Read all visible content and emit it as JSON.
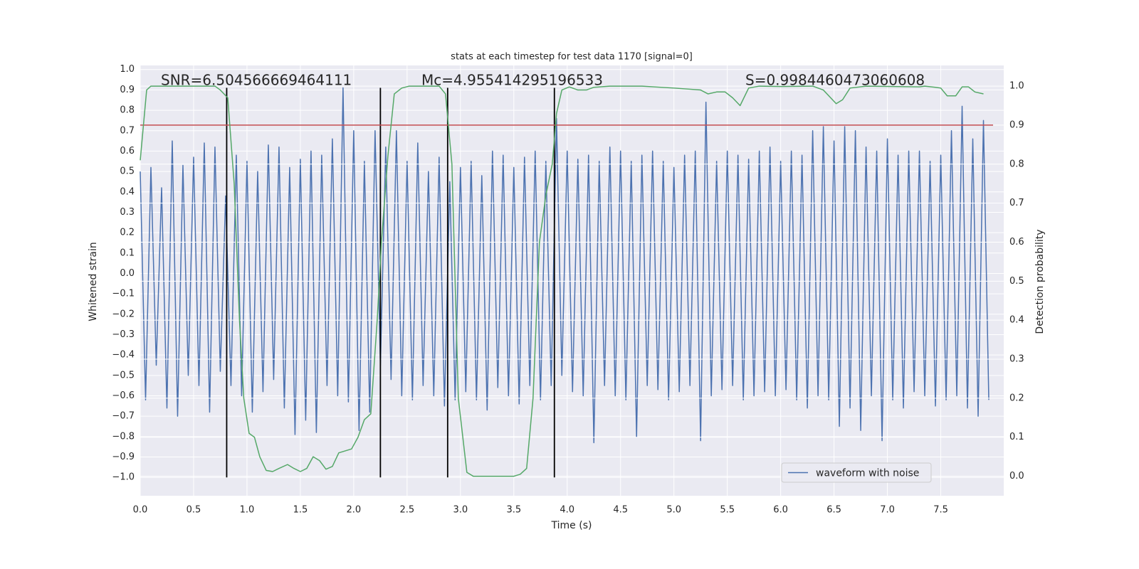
{
  "chart_data": {
    "type": "line",
    "title": "stats at each timestep for test data 1170 [signal=0]",
    "xlabel": "Time (s)",
    "ylabel": "Whitened strain",
    "y2label": "Detection probability",
    "annotations": [
      "SNR=6.504566669464111",
      "Mc=4.955414295196533",
      "S=0.9984460473060608"
    ],
    "xlim": [
      0,
      8.09
    ],
    "ylim": [
      -1.09,
      1.02
    ],
    "y2lim": [
      -0.05,
      1.053
    ],
    "xticks": [
      {
        "value": 0,
        "label": "0.0"
      },
      0.5,
      {
        "value": 1,
        "label": "1.0"
      },
      1.5,
      {
        "value": 2,
        "label": "2.0"
      },
      2.5,
      {
        "value": 3,
        "label": "3.0"
      },
      3.5,
      {
        "value": 4,
        "label": "4.0"
      },
      4.5,
      {
        "value": 5,
        "label": "5.0"
      },
      5.5,
      {
        "value": 6,
        "label": "6.0"
      },
      6.5,
      {
        "value": 7,
        "label": "7.0"
      },
      7.5
    ],
    "yticks": [
      {
        "value": -1,
        "label": "−1.0"
      },
      {
        "value": -0.9,
        "label": "−0.9"
      },
      {
        "value": -0.8,
        "label": "−0.8"
      },
      {
        "value": -0.7,
        "label": "−0.7"
      },
      {
        "value": -0.6,
        "label": "−0.6"
      },
      {
        "value": -0.5,
        "label": "−0.5"
      },
      {
        "value": -0.4,
        "label": "−0.4"
      },
      {
        "value": -0.3,
        "label": "−0.3"
      },
      {
        "value": -0.2,
        "label": "−0.2"
      },
      {
        "value": -0.1,
        "label": "−0.1"
      },
      {
        "value": 0,
        "label": "0.0"
      },
      0.1,
      0.2,
      0.3,
      0.4,
      0.5,
      0.6,
      0.7,
      0.8,
      0.9,
      {
        "value": 1,
        "label": "1.0"
      }
    ],
    "y2ticks": [
      {
        "value": 0,
        "label": "0.0"
      },
      0.1,
      0.2,
      0.3,
      0.4,
      0.5,
      0.6,
      0.7,
      0.8,
      0.9,
      {
        "value": 1,
        "label": "1.0"
      }
    ],
    "grid": true,
    "legend": "lower right",
    "series": [
      {
        "name": "waveform with noise",
        "color": "#4c72b0",
        "x": [
          0,
          0.05,
          0.1,
          0.15,
          0.2,
          0.25,
          0.3,
          0.35,
          0.4,
          0.45,
          0.5,
          0.55,
          0.6,
          0.65,
          0.7,
          0.75,
          0.8,
          0.85,
          0.9,
          0.95,
          1,
          1.05,
          1.1,
          1.15,
          1.2,
          1.25,
          1.3,
          1.35,
          1.4,
          1.45,
          1.5,
          1.55,
          1.6,
          1.65,
          1.7,
          1.75,
          1.8,
          1.85,
          1.9,
          1.95,
          2,
          2.05,
          2.1,
          2.15,
          2.2,
          2.25,
          2.3,
          2.35,
          2.4,
          2.45,
          2.5,
          2.55,
          2.6,
          2.65,
          2.7,
          2.75,
          2.8,
          2.85,
          2.9,
          2.95,
          3,
          3.05,
          3.1,
          3.15,
          3.2,
          3.25,
          3.3,
          3.35,
          3.4,
          3.45,
          3.5,
          3.55,
          3.6,
          3.65,
          3.7,
          3.75,
          3.8,
          3.85,
          3.9,
          3.95,
          4,
          4.05,
          4.1,
          4.15,
          4.2,
          4.25,
          4.3,
          4.35,
          4.4,
          4.45,
          4.5,
          4.55,
          4.6,
          4.65,
          4.7,
          4.75,
          4.8,
          4.85,
          4.9,
          4.95,
          5,
          5.05,
          5.1,
          5.15,
          5.2,
          5.25,
          5.3,
          5.35,
          5.4,
          5.45,
          5.5,
          5.55,
          5.6,
          5.65,
          5.7,
          5.75,
          5.8,
          5.85,
          5.9,
          5.95,
          6,
          6.05,
          6.1,
          6.15,
          6.2,
          6.25,
          6.3,
          6.35,
          6.4,
          6.45,
          6.5,
          6.55,
          6.6,
          6.65,
          6.7,
          6.75,
          6.8,
          6.85,
          6.9,
          6.95,
          7,
          7.05,
          7.1,
          7.15,
          7.2,
          7.25,
          7.3,
          7.35,
          7.4,
          7.45,
          7.5,
          7.55,
          7.6,
          7.65,
          7.7,
          7.75,
          7.8,
          7.85,
          7.9,
          7.95
        ],
        "values": [
          0.5,
          -0.62,
          0.52,
          -0.45,
          0.42,
          -0.66,
          0.65,
          -0.7,
          0.53,
          -0.5,
          0.57,
          -0.55,
          0.64,
          -0.68,
          0.62,
          -0.48,
          0.38,
          -0.55,
          0.58,
          -0.6,
          0.55,
          -0.68,
          0.5,
          -0.58,
          0.63,
          -0.52,
          0.62,
          -0.66,
          0.52,
          -0.79,
          0.56,
          -0.72,
          0.6,
          -0.78,
          0.58,
          -0.55,
          0.66,
          -0.6,
          0.91,
          -0.63,
          0.7,
          -0.77,
          0.55,
          -0.68,
          0.7,
          -0.45,
          0.62,
          -0.52,
          0.7,
          -0.6,
          0.55,
          -0.62,
          0.64,
          -0.55,
          0.5,
          -0.6,
          0.57,
          -0.65,
          0.45,
          -0.62,
          0.52,
          -0.58,
          0.55,
          -0.62,
          0.48,
          -0.67,
          0.6,
          -0.56,
          0.58,
          -0.6,
          0.52,
          -0.64,
          0.57,
          -0.55,
          0.6,
          -0.62,
          0.55,
          -0.55,
          0.76,
          -0.5,
          0.6,
          -0.58,
          0.56,
          -0.6,
          0.58,
          -0.83,
          0.55,
          -0.55,
          0.62,
          -0.6,
          0.6,
          -0.62,
          0.55,
          -0.8,
          0.58,
          -0.55,
          0.6,
          -0.57,
          0.55,
          -0.62,
          0.52,
          -0.58,
          0.58,
          -0.55,
          0.6,
          -0.82,
          0.84,
          -0.6,
          0.55,
          -0.57,
          0.6,
          -0.55,
          0.58,
          -0.62,
          0.56,
          -0.6,
          0.6,
          -0.58,
          0.62,
          -0.6,
          0.55,
          -0.57,
          0.6,
          -0.62,
          0.58,
          -0.66,
          0.7,
          -0.6,
          0.72,
          -0.62,
          0.65,
          -0.75,
          0.72,
          -0.66,
          0.7,
          -0.77,
          0.62,
          -0.6,
          0.6,
          -0.82,
          0.66,
          -0.62,
          0.58,
          -0.66,
          0.6,
          -0.58,
          0.6,
          -0.6,
          0.55,
          -0.65,
          0.58,
          -0.62,
          0.7,
          -0.6,
          0.82,
          -0.66,
          0.66,
          -0.7,
          0.75,
          -0.62
        ]
      },
      {
        "color": "#c44e52",
        "axis": "y2",
        "x": [
          0,
          7.99
        ],
        "values": [
          0.9,
          0.9
        ]
      },
      {
        "color": "#55a868",
        "axis": "y2",
        "x": [
          0,
          0.06,
          0.1,
          0.7,
          0.75,
          0.82,
          0.88,
          0.93,
          0.97,
          1.02,
          1.07,
          1.12,
          1.18,
          1.24,
          1.3,
          1.38,
          1.44,
          1.5,
          1.56,
          1.62,
          1.68,
          1.74,
          1.8,
          1.86,
          1.92,
          1.98,
          2.04,
          2.1,
          2.16,
          2.22,
          2.26,
          2.32,
          2.38,
          2.45,
          2.52,
          2.8,
          2.86,
          2.92,
          2.98,
          3.06,
          3.12,
          3.2,
          3.5,
          3.56,
          3.62,
          3.68,
          3.74,
          3.8,
          3.86,
          3.9,
          3.95,
          4.02,
          4.1,
          4.18,
          4.25,
          4.4,
          4.7,
          5,
          5.25,
          5.32,
          5.4,
          5.48,
          5.55,
          5.62,
          5.7,
          5.8,
          6,
          6.3,
          6.4,
          6.52,
          6.58,
          6.65,
          6.8,
          7.3,
          7.35,
          7.45,
          7.5,
          7.56,
          7.64,
          7.7,
          7.76,
          7.82,
          7.9
        ],
        "values": [
          0.81,
          0.99,
          1,
          1,
          0.99,
          0.97,
          0.75,
          0.4,
          0.2,
          0.11,
          0.1,
          0.05,
          0.015,
          0.012,
          0.02,
          0.03,
          0.02,
          0.012,
          0.02,
          0.05,
          0.04,
          0.018,
          0.025,
          0.06,
          0.065,
          0.07,
          0.1,
          0.145,
          0.16,
          0.4,
          0.6,
          0.82,
          0.98,
          0.995,
          1,
          1,
          0.98,
          0.8,
          0.2,
          0.01,
          0,
          0,
          0,
          0.005,
          0.02,
          0.2,
          0.6,
          0.72,
          0.8,
          0.93,
          0.99,
          0.998,
          0.99,
          0.99,
          0.997,
          1,
          1,
          0.995,
          0.99,
          0.98,
          0.985,
          0.985,
          0.97,
          0.95,
          0.995,
          1,
          0.999,
          1,
          0.99,
          0.955,
          0.965,
          0.995,
          1,
          0.998,
          1,
          0.997,
          0.995,
          0.975,
          0.975,
          0.998,
          0.998,
          0.985,
          0.98
        ]
      }
    ],
    "vlines": {
      "color": "#000000",
      "x": [
        0.81,
        2.25,
        2.88,
        3.88
      ],
      "range": [
        -1,
        0.91
      ]
    }
  }
}
